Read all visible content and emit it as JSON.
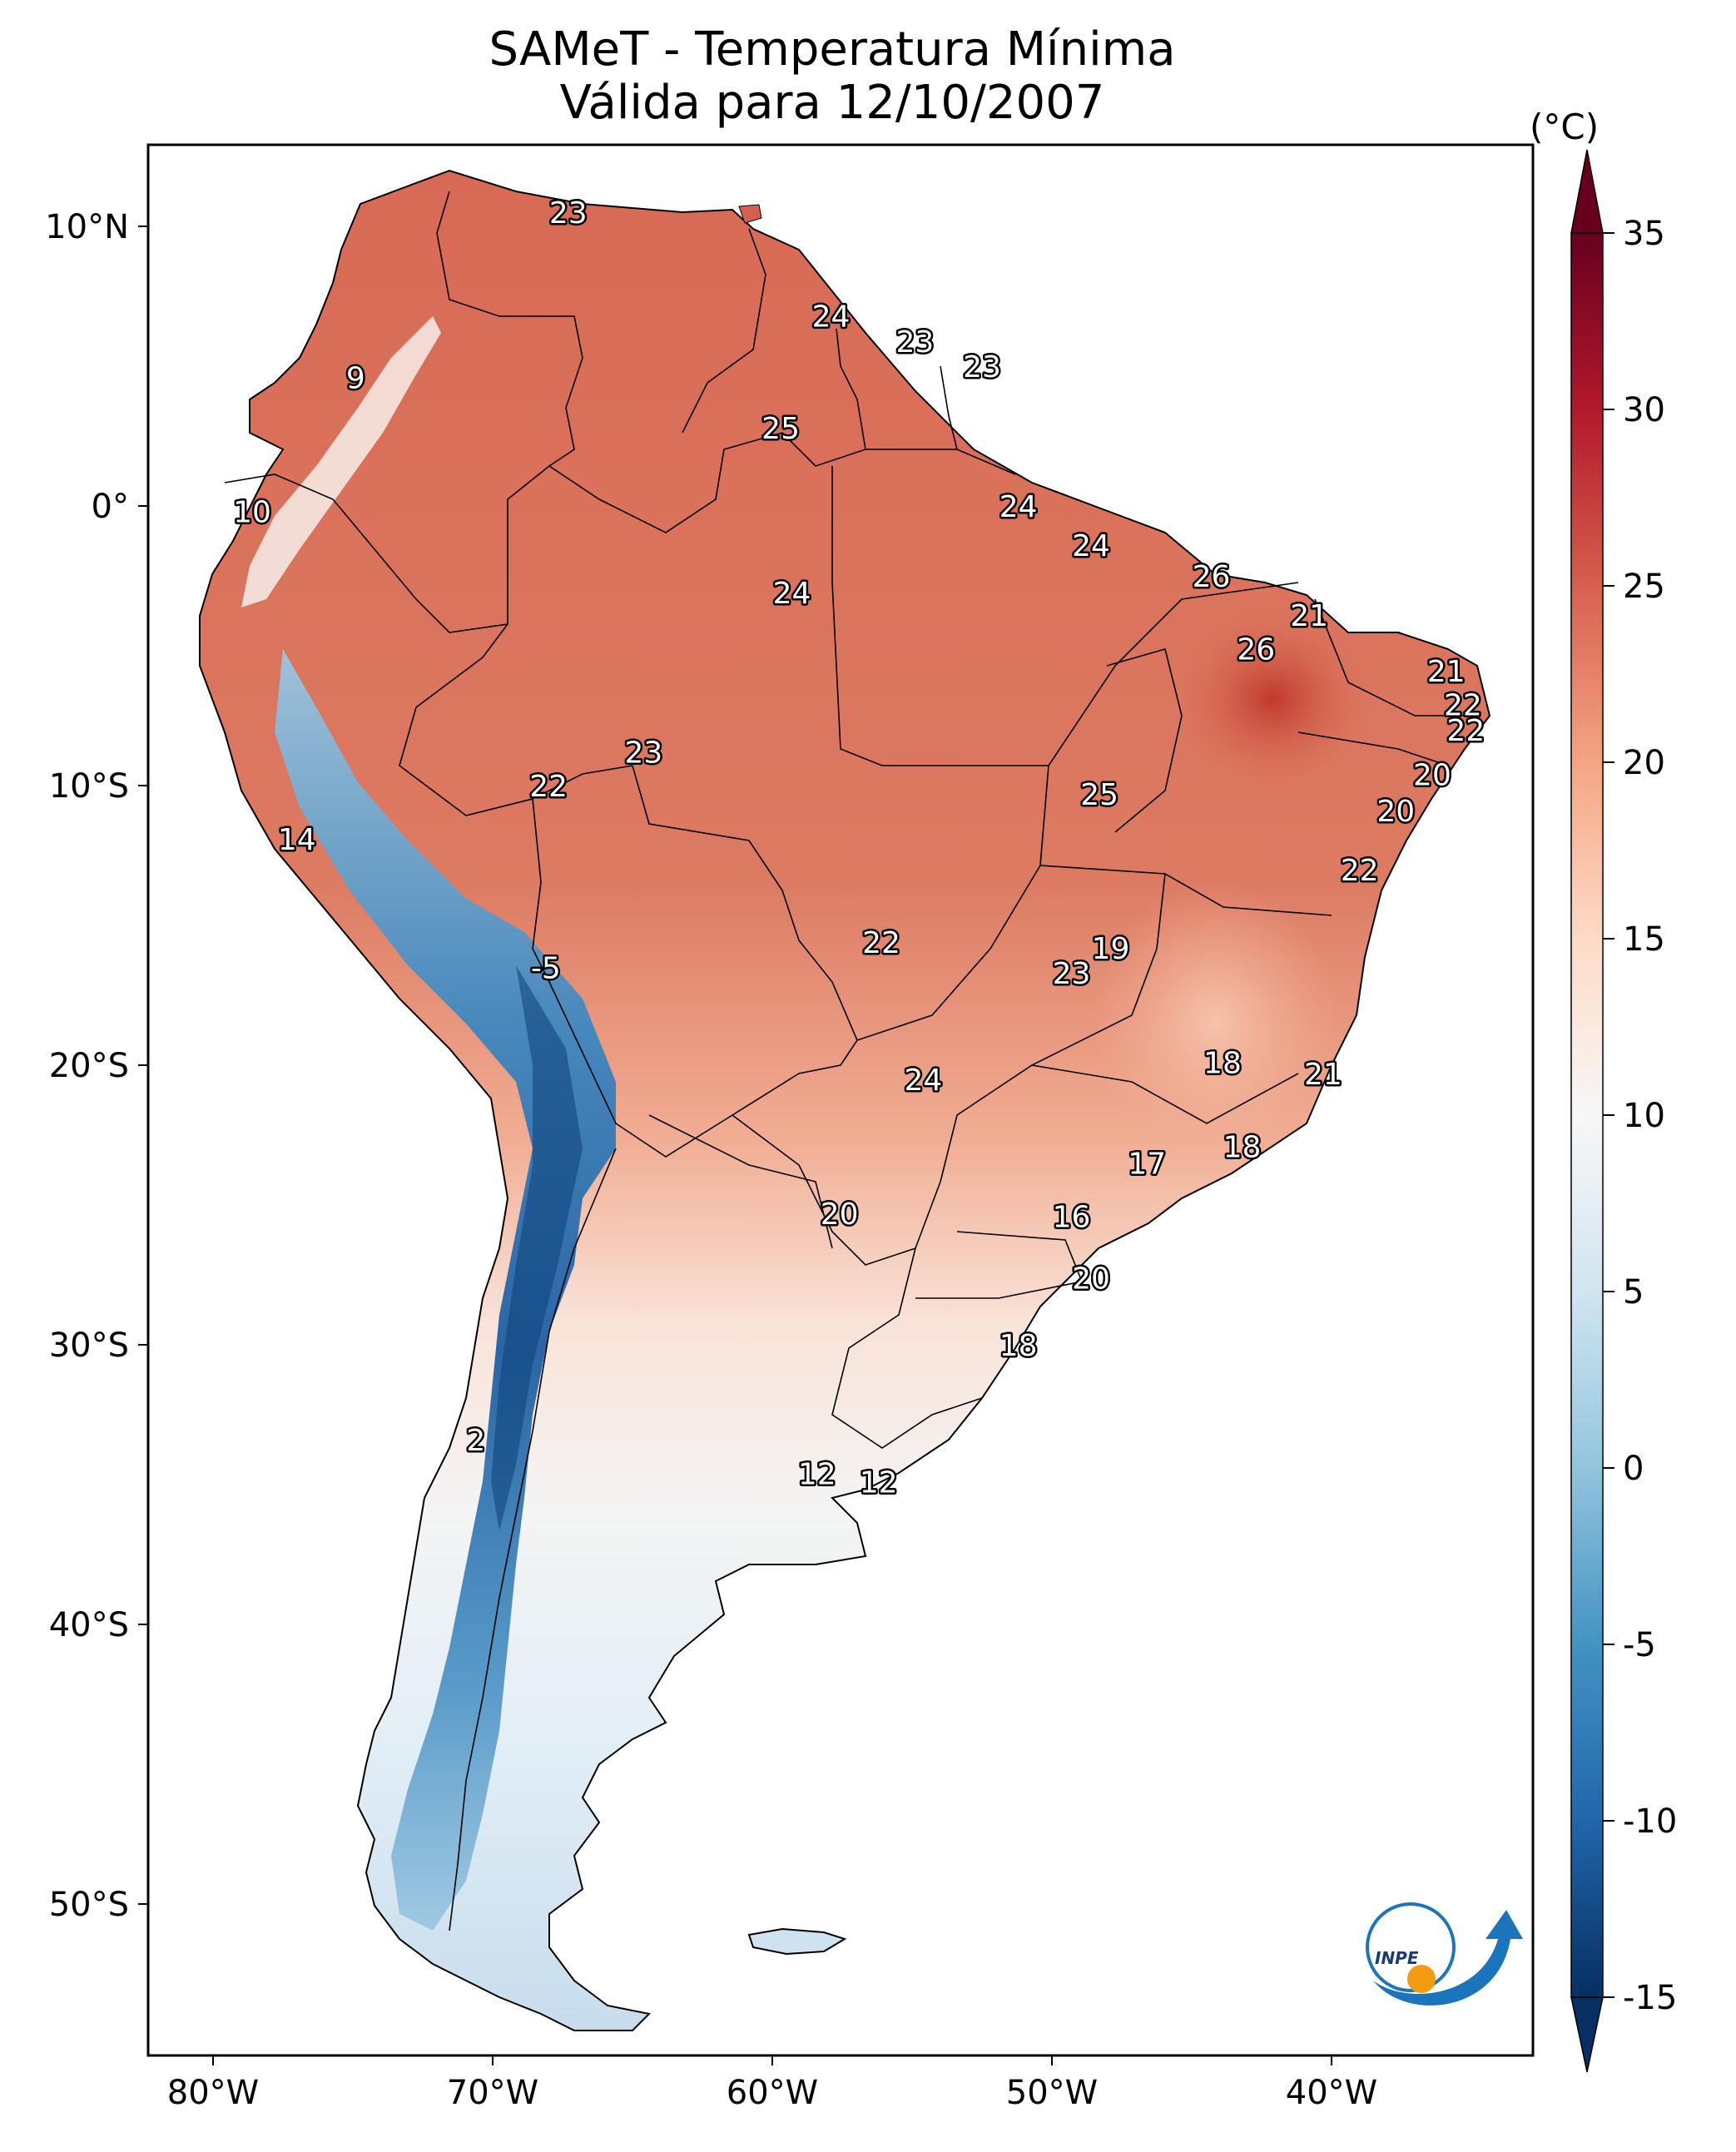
{
  "title_line1": "SAMeT - Temperatura Mínima",
  "title_line2": "Válida para 12/10/2007",
  "colorbar": {
    "unit": "(°C)",
    "ticks": [
      {
        "value": 35,
        "label": "35"
      },
      {
        "value": 30,
        "label": "30"
      },
      {
        "value": 25,
        "label": "25"
      },
      {
        "value": 20,
        "label": "20"
      },
      {
        "value": 15,
        "label": "15"
      },
      {
        "value": 10,
        "label": "10"
      },
      {
        "value": 5,
        "label": "5"
      },
      {
        "value": 0,
        "label": "0"
      },
      {
        "value": -5,
        "label": "-5"
      },
      {
        "value": -10,
        "label": "-10"
      },
      {
        "value": -15,
        "label": "-15"
      }
    ],
    "colors": [
      "#053061",
      "#2166ac",
      "#4393c3",
      "#92c5de",
      "#d1e5f0",
      "#f7f7f7",
      "#fddbc7",
      "#f4a582",
      "#d6604d",
      "#b2182b",
      "#67001f"
    ]
  },
  "axes": {
    "lon_ticks": [
      {
        "value": -80,
        "label": "80°W"
      },
      {
        "value": -70,
        "label": "70°W"
      },
      {
        "value": -60,
        "label": "60°W"
      },
      {
        "value": -50,
        "label": "50°W"
      },
      {
        "value": -40,
        "label": "40°W"
      }
    ],
    "lat_ticks": [
      {
        "value": 10,
        "label": "10°N"
      },
      {
        "value": 0,
        "label": "0°"
      },
      {
        "value": -10,
        "label": "10°S"
      },
      {
        "value": -20,
        "label": "20°S"
      },
      {
        "value": -30,
        "label": "30°S"
      },
      {
        "value": -40,
        "label": "40°S"
      },
      {
        "value": -50,
        "label": "50°S"
      }
    ]
  },
  "points": [
    {
      "lon": -67.3,
      "lat": 10.5,
      "value": "23"
    },
    {
      "lon": -57.9,
      "lat": 6.8,
      "value": "24"
    },
    {
      "lon": -54.9,
      "lat": 5.9,
      "value": "23"
    },
    {
      "lon": -52.5,
      "lat": 5.0,
      "value": "23"
    },
    {
      "lon": -74.9,
      "lat": 4.6,
      "value": "9"
    },
    {
      "lon": -59.7,
      "lat": 2.8,
      "value": "25"
    },
    {
      "lon": -78.6,
      "lat": -0.2,
      "value": "10"
    },
    {
      "lon": -51.2,
      "lat": 0.0,
      "value": "24"
    },
    {
      "lon": -48.6,
      "lat": -1.4,
      "value": "24"
    },
    {
      "lon": -44.3,
      "lat": -2.5,
      "value": "26"
    },
    {
      "lon": -59.3,
      "lat": -3.1,
      "value": "24"
    },
    {
      "lon": -40.8,
      "lat": -3.9,
      "value": "21"
    },
    {
      "lon": -42.7,
      "lat": -5.1,
      "value": "26"
    },
    {
      "lon": -35.9,
      "lat": -5.9,
      "value": "21"
    },
    {
      "lon": -35.3,
      "lat": -7.1,
      "value": "22"
    },
    {
      "lon": -35.2,
      "lat": -8.0,
      "value": "22"
    },
    {
      "lon": -64.6,
      "lat": -8.8,
      "value": "23"
    },
    {
      "lon": -36.4,
      "lat": -9.6,
      "value": "20"
    },
    {
      "lon": -68.0,
      "lat": -10.0,
      "value": "22"
    },
    {
      "lon": -48.3,
      "lat": -10.3,
      "value": "25"
    },
    {
      "lon": -37.7,
      "lat": -10.9,
      "value": "20"
    },
    {
      "lon": -77.0,
      "lat": -11.9,
      "value": "14"
    },
    {
      "lon": -39.0,
      "lat": -13.0,
      "value": "22"
    },
    {
      "lon": -56.1,
      "lat": -15.6,
      "value": "22"
    },
    {
      "lon": -47.9,
      "lat": -15.8,
      "value": "19"
    },
    {
      "lon": -49.3,
      "lat": -16.7,
      "value": "23"
    },
    {
      "lon": -68.1,
      "lat": -16.5,
      "value": "-5"
    },
    {
      "lon": -43.9,
      "lat": -19.9,
      "value": "18"
    },
    {
      "lon": -40.3,
      "lat": -20.3,
      "value": "21"
    },
    {
      "lon": -54.6,
      "lat": -20.5,
      "value": "24"
    },
    {
      "lon": -43.2,
      "lat": -22.9,
      "value": "18"
    },
    {
      "lon": -46.6,
      "lat": -23.5,
      "value": "17"
    },
    {
      "lon": -49.3,
      "lat": -25.4,
      "value": "16"
    },
    {
      "lon": -57.6,
      "lat": -25.3,
      "value": "20"
    },
    {
      "lon": -48.6,
      "lat": -27.6,
      "value": "20"
    },
    {
      "lon": -51.2,
      "lat": -30.0,
      "value": "18"
    },
    {
      "lon": -70.6,
      "lat": -33.4,
      "value": "2"
    },
    {
      "lon": -58.4,
      "lat": -34.6,
      "value": "12"
    },
    {
      "lon": -56.2,
      "lat": -34.9,
      "value": "12"
    }
  ]
}
